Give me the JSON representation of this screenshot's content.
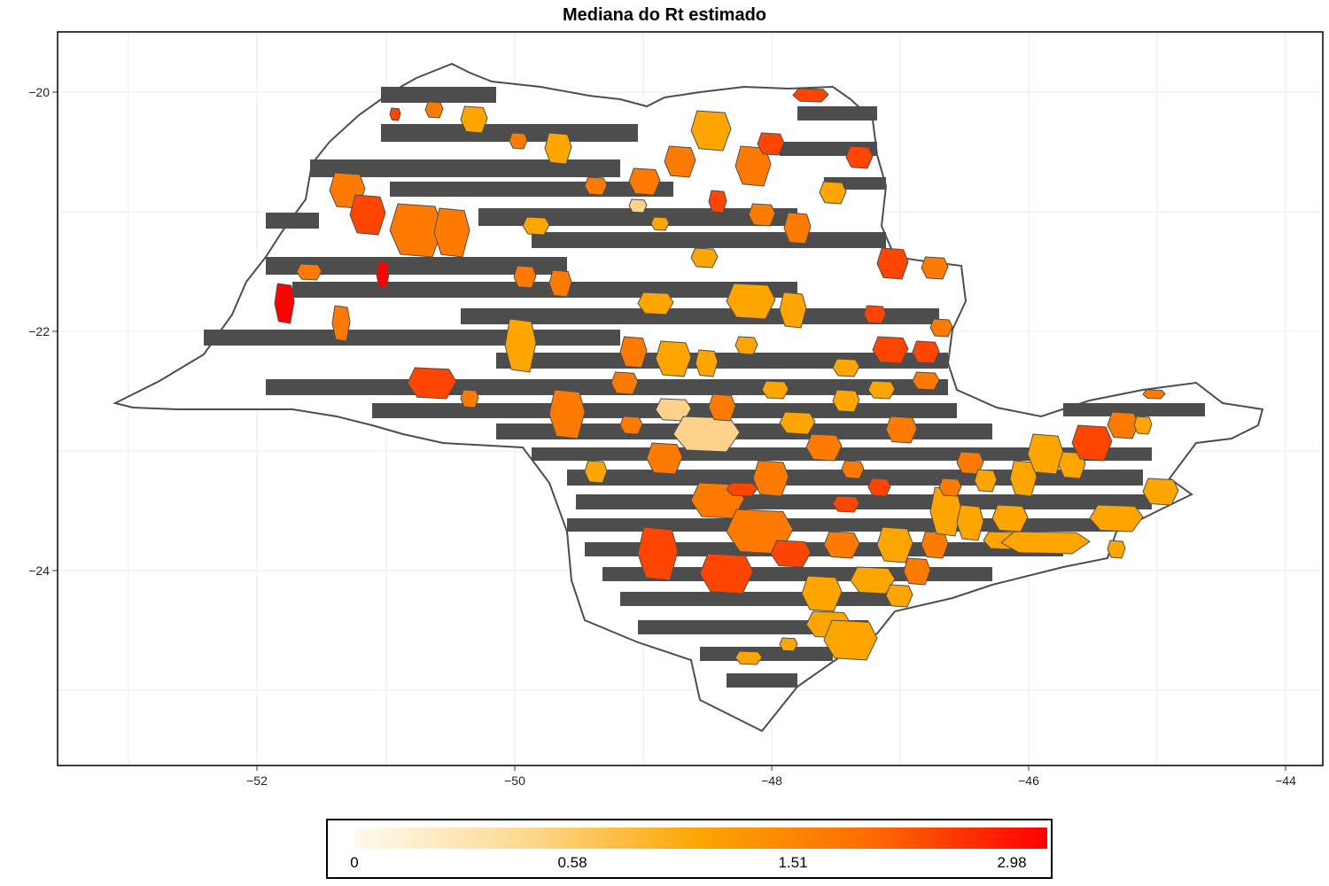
{
  "title": "Mediana do Rt estimado",
  "axes": {
    "x_ticks": [
      -52,
      -50,
      -48,
      -46,
      -44
    ],
    "y_ticks": [
      -20,
      -22,
      -24
    ],
    "x_tick_labels": [
      "−52",
      "−50",
      "−48",
      "−46",
      "−44"
    ],
    "y_tick_labels": [
      "−20",
      "−22",
      "−24"
    ],
    "xlim": [
      -53.2,
      -43.7
    ],
    "ylim": [
      -25.7,
      -19.5
    ],
    "grid": true
  },
  "legend": {
    "position": "bottom",
    "labels": [
      "0",
      "0.58",
      "1.51",
      "2.98"
    ],
    "label_values": [
      0,
      0.58,
      1.51,
      2.98
    ],
    "min": 0,
    "max": 3.1,
    "colors": [
      "#fffaf0",
      "#fed98e",
      "#ffa500",
      "#ff6a00",
      "#ff0000"
    ]
  },
  "colors": {
    "no_data": "#ffffff",
    "masked": "#4d4d4d",
    "border": "#4d4d4d",
    "low": "#fed28a",
    "mid": "#ffa500",
    "high": "#ff7a00",
    "very_high": "#ff4500",
    "max": "#ff0000"
  }
}
